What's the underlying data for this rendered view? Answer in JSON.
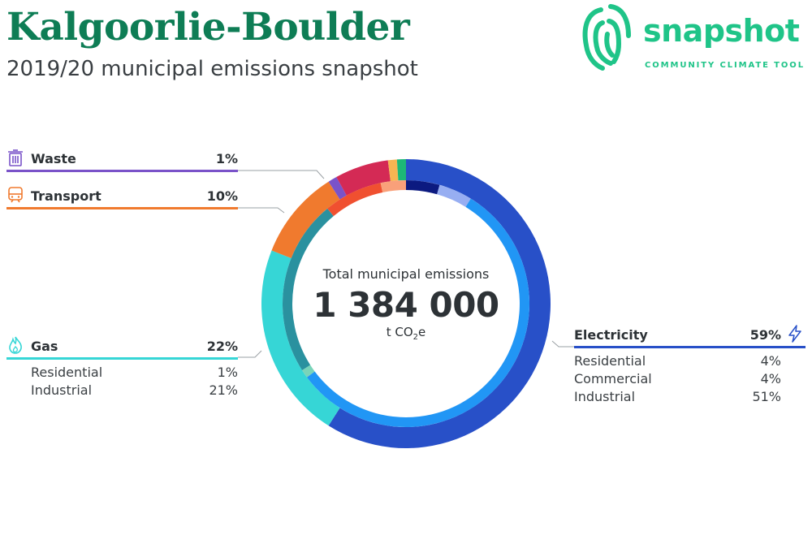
{
  "header": {
    "title": "Kalgoorlie-Boulder",
    "subtitle": "2019/20 municipal emissions snapshot"
  },
  "logo": {
    "word": "snapshot",
    "tagline": "COMMUNITY CLIMATE TOOL",
    "color": "#1fc488"
  },
  "center": {
    "label": "Total municipal emissions",
    "value": "1 384 000",
    "unit_prefix": "t CO",
    "unit_sub": "2",
    "unit_suffix": "e"
  },
  "categories": {
    "waste": {
      "name": "Waste",
      "pct": "1%",
      "color": "#7a53c9",
      "icon": "trash-icon"
    },
    "transport": {
      "name": "Transport",
      "pct": "10%",
      "color": "#f07a2e",
      "icon": "train-icon"
    },
    "gas": {
      "name": "Gas",
      "pct": "22%",
      "color": "#36d6d6",
      "icon": "flame-icon",
      "subs": [
        {
          "name": "Residential",
          "pct": "1%"
        },
        {
          "name": "Industrial",
          "pct": "21%"
        }
      ]
    },
    "electricity": {
      "name": "Electricity",
      "pct": "59%",
      "color": "#2850c8",
      "icon": "lightning-icon",
      "subs": [
        {
          "name": "Residential",
          "pct": "4%"
        },
        {
          "name": "Commercial",
          "pct": "4%"
        },
        {
          "name": "Industrial",
          "pct": "51%"
        }
      ]
    }
  },
  "chart_data": {
    "type": "pie",
    "variant": "donut",
    "total": 1384000,
    "unit": "t CO2e",
    "outer_ring": [
      {
        "name": "Electricity",
        "value": 59,
        "color": "#2850c8"
      },
      {
        "name": "Gas",
        "value": 22,
        "color": "#36d6d6"
      },
      {
        "name": "Transport",
        "value": 10,
        "color": "#f07a2e"
      },
      {
        "name": "Waste",
        "value": 1,
        "color": "#7a53c9"
      },
      {
        "value": 6,
        "color": "#d42a55"
      },
      {
        "value": 1,
        "color": "#f7b552"
      },
      {
        "value": 1,
        "color": "#1db877"
      }
    ],
    "inner_ring": [
      {
        "name": "Electricity Residential",
        "value": 4,
        "color": "#0c1a80"
      },
      {
        "name": "Electricity Commercial",
        "value": 4,
        "color": "#97aef2"
      },
      {
        "name": "Electricity Industrial",
        "value": 51,
        "color": "#2196f5"
      },
      {
        "name": "Gas Residential",
        "value": 1,
        "color": "#79d4b9"
      },
      {
        "name": "Gas Industrial",
        "value": 21,
        "color": "#2a919f"
      },
      {
        "value": 7,
        "color": "#f05030"
      },
      {
        "value": 3,
        "color": "#f9a07a"
      }
    ]
  }
}
